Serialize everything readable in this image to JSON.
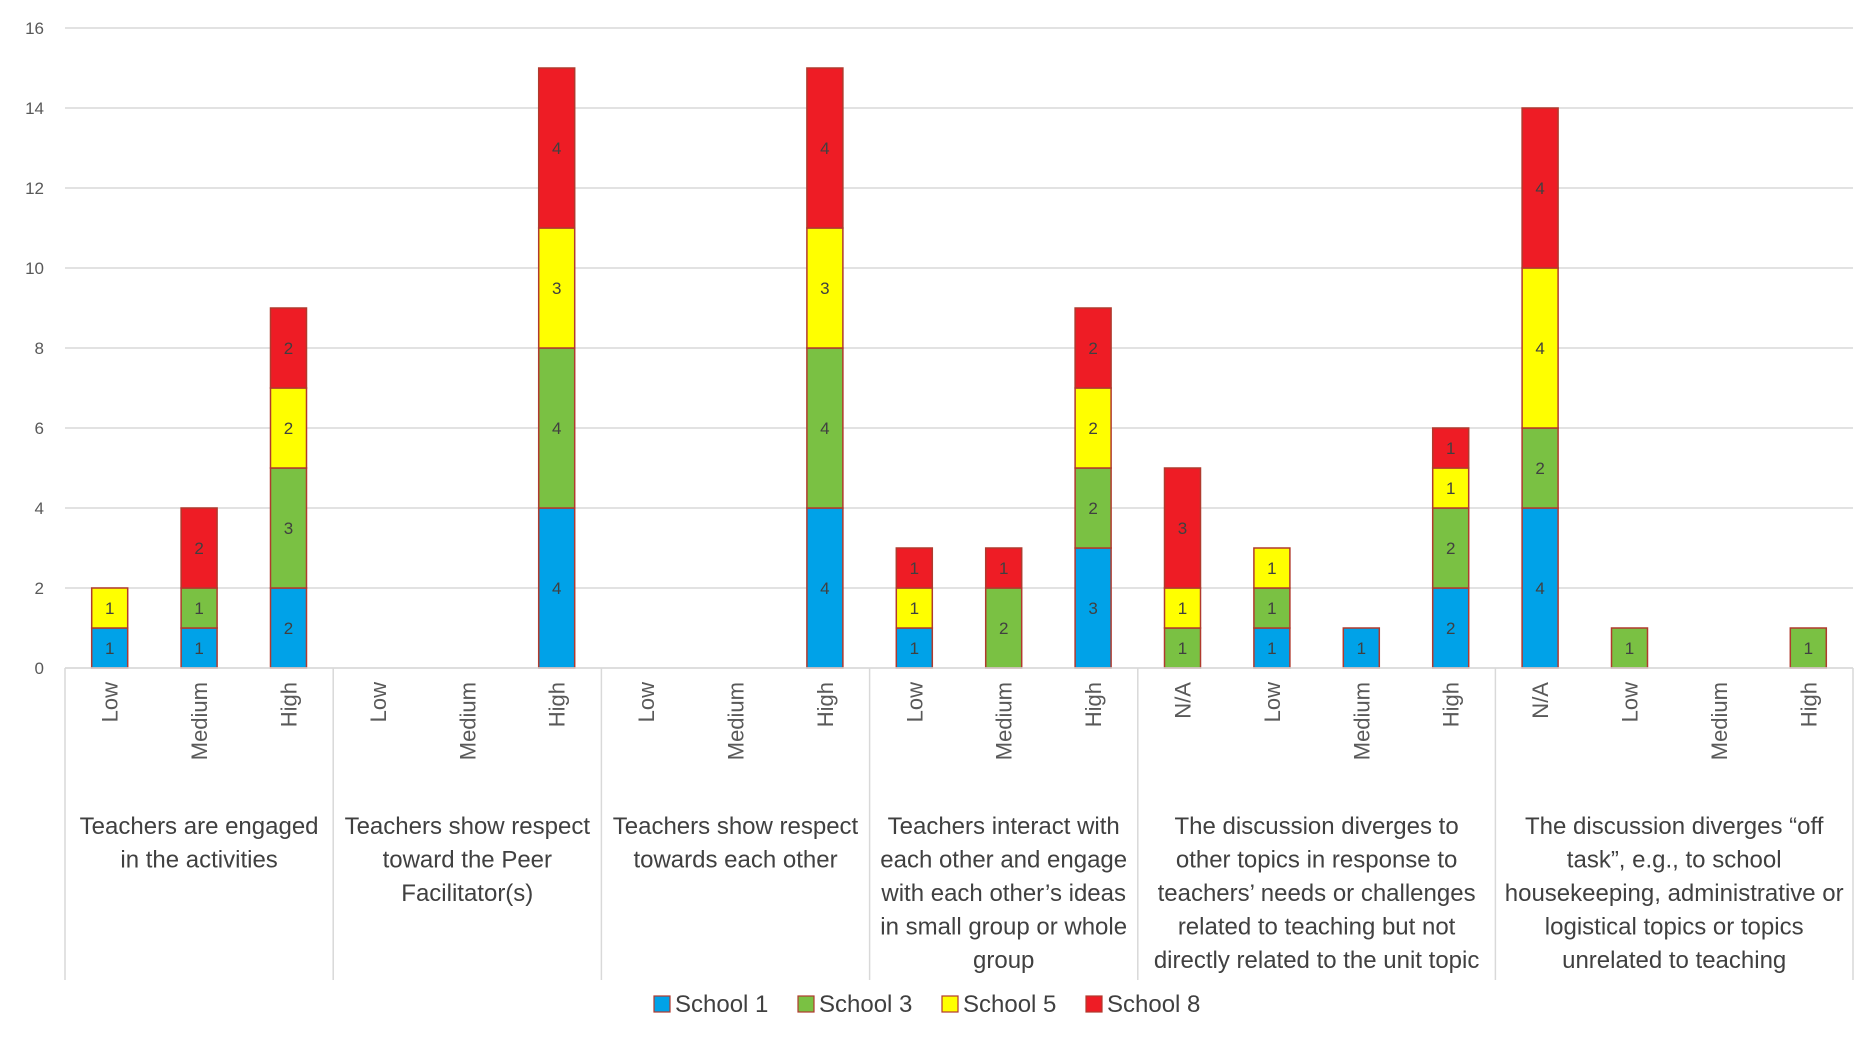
{
  "chart_data": {
    "type": "bar",
    "stacked": true,
    "ylim": [
      0,
      16
    ],
    "yticks": [
      0,
      2,
      4,
      6,
      8,
      10,
      12,
      14,
      16
    ],
    "grid": true,
    "legend_position": "bottom",
    "groups": [
      {
        "label": "Teachers are engaged in the activities",
        "lines": [
          "Teachers are engaged",
          "in the activities"
        ],
        "categories": [
          "Low",
          "Medium",
          "High"
        ]
      },
      {
        "label": "Teachers show respect toward the Peer Facilitator(s)",
        "lines": [
          "Teachers show respect",
          "toward the Peer",
          "Facilitator(s)"
        ],
        "categories": [
          "Low",
          "Medium",
          "High"
        ]
      },
      {
        "label": "Teachers show respect towards each other",
        "lines": [
          "Teachers show respect",
          "towards each other"
        ],
        "categories": [
          "Low",
          "Medium",
          "High"
        ]
      },
      {
        "label": "Teachers interact with each other and engage with each other’s ideas in small group or whole group",
        "lines": [
          "Teachers interact with",
          "each other and engage",
          "with each other’s ideas",
          "in small group or whole",
          "group"
        ],
        "categories": [
          "Low",
          "Medium",
          "High"
        ]
      },
      {
        "label": "The discussion diverges to other topics in response to teachers’ needs or challenges related to teaching but not directly related to the unit topic",
        "lines": [
          "The discussion diverges to",
          "other topics in response to",
          "teachers’ needs or challenges",
          "related to teaching but not",
          "directly related to the unit topic"
        ],
        "categories": [
          "N/A",
          "Low",
          "Medium",
          "High"
        ]
      },
      {
        "label": "The discussion diverges “off task”, e.g., to school housekeeping, administrative or logistical topics or topics unrelated to teaching",
        "lines": [
          "The discussion diverges “off",
          "task”, e.g.,  to school",
          "housekeeping, administrative or",
          "logistical topics or topics",
          "unrelated to teaching"
        ],
        "categories": [
          "N/A",
          "Low",
          "Medium",
          "High"
        ]
      }
    ],
    "series": [
      {
        "name": "School 1",
        "color": "#00A2E8",
        "values": [
          1,
          1,
          2,
          0,
          0,
          4,
          0,
          0,
          4,
          1,
          0,
          3,
          0,
          1,
          1,
          2,
          4,
          0,
          0,
          0
        ]
      },
      {
        "name": "School 3",
        "color": "#7AC143",
        "values": [
          0,
          1,
          3,
          0,
          0,
          4,
          0,
          0,
          4,
          0,
          2,
          2,
          1,
          1,
          0,
          2,
          2,
          1,
          0,
          1
        ]
      },
      {
        "name": "School 5",
        "color": "#FFFF00",
        "values": [
          1,
          0,
          2,
          0,
          0,
          3,
          0,
          0,
          3,
          1,
          0,
          2,
          1,
          1,
          0,
          1,
          4,
          0,
          0,
          0
        ]
      },
      {
        "name": "School 8",
        "color": "#EE1C25",
        "values": [
          0,
          2,
          2,
          0,
          0,
          4,
          0,
          0,
          4,
          1,
          1,
          2,
          3,
          0,
          0,
          1,
          4,
          0,
          0,
          0
        ]
      }
    ]
  }
}
